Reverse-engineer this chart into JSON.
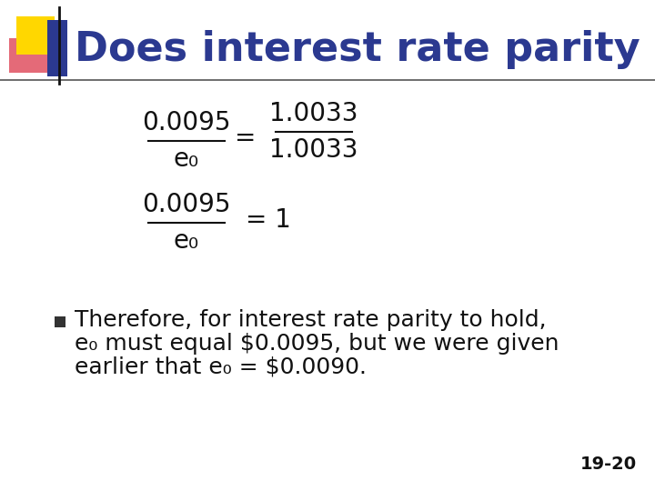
{
  "title": "Does interest rate parity hold?",
  "title_color": "#2B3990",
  "title_fontsize": 32,
  "bg_color": "#FFFFFF",
  "slide_number": "19-20",
  "eq1_num": "0.0095",
  "eq1_denom": "e₀",
  "eq1_rhs_num": "1.0033",
  "eq1_rhs_denom": "1.0033",
  "eq2_num": "0.0095",
  "eq2_denom": "e₀",
  "eq2_rhs": "= 1",
  "bullet_text_line1": "Therefore, for interest rate parity to hold,",
  "bullet_text_line2": "e₀ must equal $0.0095, but we were given",
  "bullet_text_line3": "earlier that e₀ = $0.0090.",
  "bullet_color": "#111111",
  "bullet_fontsize": 18,
  "math_color": "#111111",
  "math_fontsize": 20,
  "decor_yellow": "#FFD700",
  "decor_red": "#E05060",
  "decor_blue": "#2B3990",
  "line_color": "#555555"
}
